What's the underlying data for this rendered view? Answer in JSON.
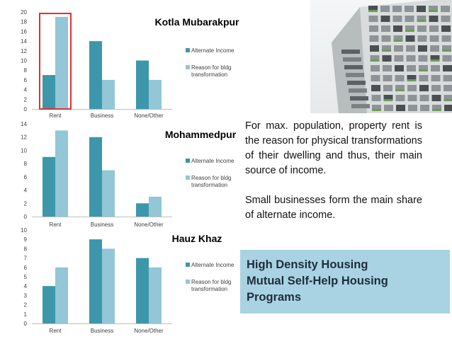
{
  "chart_data": [
    {
      "type": "bar",
      "title": "Kotla Mubarakpur",
      "categories": [
        "Rent",
        "Business",
        "None/Other"
      ],
      "series": [
        {
          "name": "Alternate Income",
          "values": [
            7,
            14,
            10
          ]
        },
        {
          "name": "Reason for bldg transformation",
          "values": [
            19,
            6,
            6
          ]
        }
      ],
      "ylim": [
        0,
        20
      ],
      "yticks": [
        0,
        2,
        4,
        6,
        8,
        10,
        12,
        14,
        16,
        18,
        20
      ],
      "legend": "right",
      "highlight_category": "Rent",
      "highlight_color": "#e03030"
    },
    {
      "type": "bar",
      "title": "Mohammedpur",
      "categories": [
        "Rent",
        "Business",
        "None/Other"
      ],
      "series": [
        {
          "name": "Alternate Income",
          "values": [
            9,
            12,
            2
          ]
        },
        {
          "name": "Reason for bldg transformation",
          "values": [
            13,
            7,
            3
          ]
        }
      ],
      "ylim": [
        0,
        14
      ],
      "yticks": [
        0,
        2,
        4,
        6,
        8,
        10,
        12,
        14
      ],
      "legend": "right"
    },
    {
      "type": "bar",
      "title": "Hauz Khaz",
      "categories": [
        "Rent",
        "Business",
        "None/Other"
      ],
      "series": [
        {
          "name": "Alternate Income",
          "values": [
            4,
            9,
            7
          ]
        },
        {
          "name": "Reason for bldg transformation",
          "values": [
            6,
            8,
            6
          ]
        }
      ],
      "ylim": [
        0,
        10
      ],
      "yticks": [
        0,
        1,
        2,
        3,
        4,
        5,
        6,
        7,
        8,
        9,
        10
      ],
      "legend": "right"
    }
  ],
  "colors": {
    "alternate_income": "#3d97aa",
    "reason": "#93c6d6",
    "axis": "#bfbfbf"
  },
  "photo": {
    "icon": "high-density-housing-photo"
  },
  "text": {
    "para1": "For max. population, property rent is the reason for physical transformations of their dwelling and thus, their main source of income.",
    "para2": "Small businesses form the main share of alternate income."
  },
  "box": {
    "line1": "High Density Housing",
    "line2": "Mutual Self-Help Housing",
    "line3": "Programs"
  }
}
